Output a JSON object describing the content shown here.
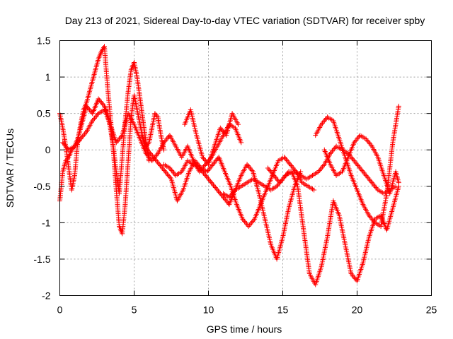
{
  "chart_data": {
    "type": "scatter",
    "title": "Day 213 of 2021, Sidereal Day-to-day VTEC variation (SDTVAR) for receiver spby",
    "xlabel": "GPS time / hours",
    "ylabel": "SDTVAR / TECUs",
    "xlim": [
      0,
      25
    ],
    "ylim": [
      -2,
      1.5
    ],
    "xticks": [
      0,
      5,
      10,
      15,
      20,
      25
    ],
    "yticks": [
      1.5,
      1,
      0.5,
      0,
      -0.5,
      -1,
      -1.5,
      -2
    ],
    "xtick_labels": [
      "0",
      "5",
      "10",
      "15",
      "20",
      "25"
    ],
    "ytick_labels": [
      "1.5",
      "1",
      "0.5",
      "0",
      "-0.5",
      "-1",
      "-1.5",
      "-2"
    ],
    "grid": true,
    "marker": "+",
    "color": "#ff0000",
    "series": [
      {
        "name": "satellite-track-1",
        "x": [
          0.0,
          0.2,
          0.4,
          0.6,
          0.8,
          1.0,
          1.2,
          1.4,
          1.6,
          1.8,
          2.0,
          2.2,
          2.4,
          2.6,
          2.8,
          3.0,
          3.2,
          3.4,
          3.6,
          3.8,
          4.0,
          4.2,
          4.4,
          4.6,
          4.8,
          5.0,
          5.2,
          5.4,
          5.6,
          5.8,
          6.0,
          6.2,
          6.4,
          6.6,
          6.8,
          7.0
        ],
        "y": [
          0.5,
          0.3,
          0.05,
          -0.25,
          -0.55,
          -0.35,
          0.1,
          0.35,
          0.55,
          0.65,
          0.8,
          0.95,
          1.1,
          1.25,
          1.35,
          1.42,
          0.9,
          0.45,
          0.0,
          -0.55,
          -1.05,
          -1.15,
          -0.75,
          -0.15,
          0.45,
          0.75,
          0.55,
          0.35,
          0.15,
          0.05,
          0.1,
          0.3,
          0.5,
          0.45,
          0.2,
          0.0
        ]
      },
      {
        "name": "satellite-track-2",
        "x": [
          0.0,
          0.2,
          0.4,
          0.6,
          0.8,
          1.0,
          1.2,
          1.4,
          1.6,
          1.8,
          2.0,
          2.2,
          2.4,
          2.6,
          2.8,
          3.0,
          3.2,
          3.4,
          3.6,
          3.8,
          4.0,
          4.2,
          4.4,
          4.6,
          4.8,
          5.0,
          5.2,
          5.4,
          5.6,
          5.8,
          6.0
        ],
        "y": [
          -0.7,
          -0.3,
          -0.15,
          -0.1,
          0.0,
          0.05,
          0.15,
          0.3,
          0.45,
          0.6,
          0.55,
          0.5,
          0.6,
          0.7,
          0.65,
          0.6,
          0.5,
          0.3,
          0.05,
          -0.3,
          -0.6,
          -0.1,
          0.4,
          0.8,
          1.1,
          1.2,
          1.0,
          0.7,
          0.4,
          0.1,
          -0.15
        ]
      },
      {
        "name": "satellite-track-3",
        "x": [
          0.2,
          0.6,
          1.0,
          1.4,
          1.8,
          2.2,
          2.6,
          3.0,
          3.4,
          3.8,
          4.2,
          4.6,
          5.0,
          5.4,
          5.8,
          6.2,
          6.6,
          7.0,
          7.4,
          7.8,
          8.2,
          8.6,
          9.0,
          9.4,
          9.8,
          10.2,
          10.6,
          11.0,
          11.4,
          11.8,
          12.2
        ],
        "y": [
          0.1,
          0.0,
          0.05,
          0.15,
          0.25,
          0.4,
          0.5,
          0.55,
          0.35,
          0.1,
          0.2,
          0.5,
          0.35,
          0.15,
          -0.05,
          -0.15,
          -0.05,
          0.1,
          0.2,
          0.05,
          -0.1,
          0.05,
          -0.15,
          -0.3,
          -0.2,
          -0.1,
          0.05,
          0.2,
          0.35,
          0.3,
          0.1
        ]
      },
      {
        "name": "satellite-track-4",
        "x": [
          5.5,
          5.9,
          6.3,
          6.7,
          7.1,
          7.5,
          7.9,
          8.3,
          8.7,
          9.1,
          9.5,
          9.9,
          10.3,
          10.7,
          11.1,
          11.5,
          11.9,
          12.3,
          12.7,
          13.1,
          13.5,
          13.9,
          14.3,
          14.7,
          15.1,
          15.5,
          15.9,
          16.3,
          16.7,
          17.1
        ],
        "y": [
          0.2,
          0.0,
          -0.1,
          -0.2,
          -0.3,
          -0.4,
          -0.7,
          -0.55,
          -0.3,
          -0.15,
          -0.25,
          -0.3,
          -0.2,
          -0.1,
          -0.3,
          -0.5,
          -0.75,
          -0.95,
          -1.05,
          -0.95,
          -0.75,
          -0.55,
          -0.35,
          -0.15,
          -0.1,
          -0.2,
          -0.3,
          -0.45,
          -0.5,
          -0.55
        ]
      },
      {
        "name": "satellite-track-5",
        "x": [
          7.0,
          7.4,
          7.8,
          8.2,
          8.6,
          9.0,
          9.4,
          9.8,
          10.2,
          10.6,
          11.0,
          11.4,
          11.8,
          12.2,
          12.6,
          13.0,
          13.4,
          13.8,
          14.2,
          14.6,
          15.0,
          15.4,
          15.8,
          16.2
        ],
        "y": [
          -0.2,
          -0.25,
          -0.35,
          -0.3,
          -0.15,
          -0.2,
          -0.25,
          -0.35,
          -0.45,
          -0.55,
          -0.65,
          -0.75,
          -0.55,
          -0.35,
          -0.2,
          -0.3,
          -0.6,
          -0.95,
          -1.3,
          -1.5,
          -1.2,
          -0.8,
          -0.5,
          -0.3
        ]
      },
      {
        "name": "satellite-track-6",
        "x": [
          11.0,
          11.4,
          11.8,
          12.2,
          12.6,
          13.0,
          13.4,
          13.8,
          14.2,
          14.6,
          15.0,
          15.4,
          15.8,
          16.2,
          16.6,
          17.0,
          17.4,
          17.8,
          18.2,
          18.6,
          19.0,
          19.4,
          19.8,
          20.2,
          20.6,
          21.0,
          21.4,
          21.8,
          22.2,
          22.6
        ],
        "y": [
          -0.6,
          -0.65,
          -0.55,
          -0.5,
          -0.45,
          -0.4,
          -0.45,
          -0.5,
          -0.55,
          -0.5,
          -0.4,
          -0.3,
          -0.3,
          -0.35,
          -0.4,
          -0.35,
          -0.3,
          -0.2,
          -0.05,
          0.05,
          0.0,
          -0.05,
          -0.15,
          -0.25,
          -0.35,
          -0.45,
          -0.55,
          -0.6,
          -0.55,
          -0.5
        ]
      },
      {
        "name": "satellite-track-7",
        "x": [
          14.0,
          14.4,
          14.8,
          15.2,
          15.6,
          16.0,
          16.4,
          16.8,
          17.2,
          17.6,
          18.0,
          18.4,
          18.8,
          19.2,
          19.6,
          20.0,
          20.4,
          20.8,
          21.2,
          21.6,
          22.0,
          22.4,
          22.8
        ],
        "y": [
          -0.25,
          -0.35,
          -0.45,
          -0.35,
          -0.3,
          -0.5,
          -1.1,
          -1.7,
          -1.85,
          -1.6,
          -1.2,
          -0.7,
          -0.9,
          -1.3,
          -1.7,
          -1.8,
          -1.55,
          -1.2,
          -0.95,
          -0.9,
          -1.1,
          -0.8,
          -0.5
        ]
      },
      {
        "name": "satellite-track-8",
        "x": [
          17.2,
          17.6,
          18.0,
          18.4,
          18.8,
          19.2,
          19.6,
          20.0,
          20.4,
          20.8,
          21.2,
          21.6,
          22.0,
          22.4,
          22.8
        ],
        "y": [
          0.2,
          0.35,
          0.45,
          0.4,
          0.15,
          -0.1,
          -0.35,
          -0.55,
          -0.75,
          -0.9,
          -1.0,
          -1.05,
          -0.6,
          0.1,
          0.6
        ]
      },
      {
        "name": "satellite-track-9",
        "x": [
          17.8,
          18.2,
          18.6,
          19.0,
          19.4,
          19.8,
          20.2,
          20.6,
          21.0,
          21.4,
          21.8,
          22.2,
          22.6,
          22.8
        ],
        "y": [
          0.0,
          -0.2,
          -0.35,
          -0.3,
          -0.1,
          0.1,
          0.2,
          0.15,
          0.05,
          -0.1,
          -0.35,
          -0.6,
          -0.3,
          -0.45
        ]
      },
      {
        "name": "satellite-track-10",
        "x": [
          8.4,
          8.8,
          9.2,
          9.6,
          10.0,
          10.4,
          10.8,
          11.2,
          11.6,
          12.0
        ],
        "y": [
          0.35,
          0.55,
          0.2,
          -0.1,
          -0.2,
          0.05,
          0.3,
          0.2,
          0.5,
          0.35
        ]
      }
    ]
  }
}
